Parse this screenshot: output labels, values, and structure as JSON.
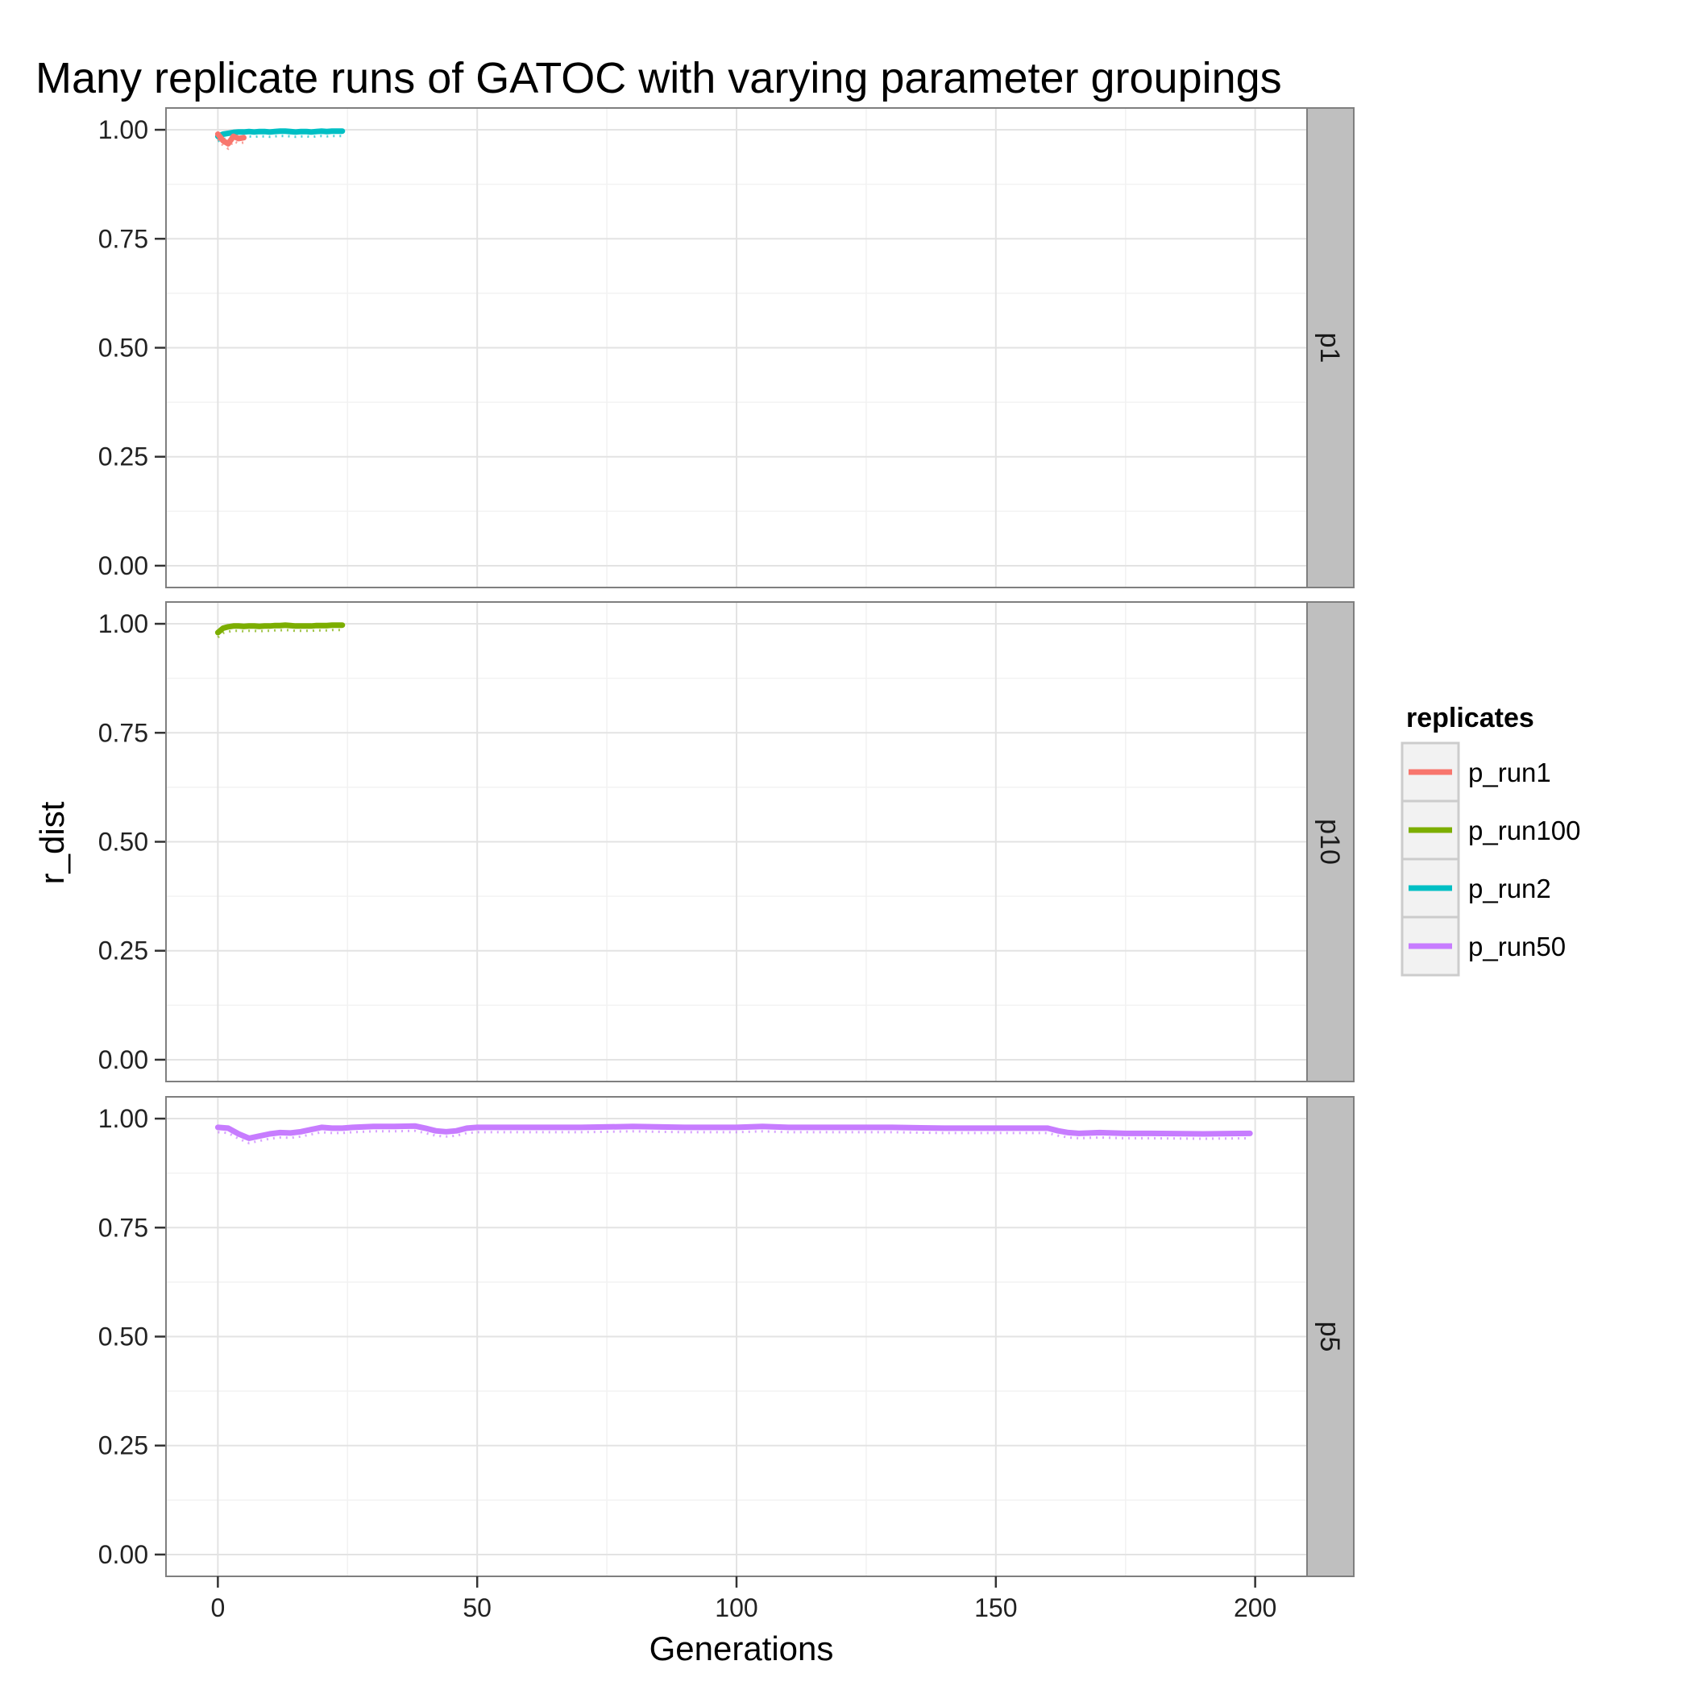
{
  "chart_data": {
    "type": "line",
    "title": "Many replicate runs of GATOC with varying parameter groupings",
    "xlabel": "Generations",
    "ylabel": "r_dist",
    "xlim": [
      -10,
      210
    ],
    "ylim": [
      -0.05,
      1.05
    ],
    "x_ticks": [
      0,
      50,
      100,
      150,
      200
    ],
    "y_ticks": [
      0.0,
      0.25,
      0.5,
      0.75,
      1.0
    ],
    "y_tick_labels": [
      "0.00",
      "0.25",
      "0.50",
      "0.75",
      "1.00"
    ],
    "grid": true,
    "facet": "rows",
    "legend": {
      "title": "replicates",
      "position": "right",
      "entries": [
        {
          "name": "p_run1",
          "color": "#F8766D"
        },
        {
          "name": "p_run100",
          "color": "#7CAE00"
        },
        {
          "name": "p_run2",
          "color": "#00BFC4"
        },
        {
          "name": "p_run50",
          "color": "#C77CFF"
        }
      ]
    },
    "panels": [
      {
        "label": "p1",
        "series": [
          {
            "name": "p_run2",
            "color": "#00BFC4",
            "x": [
              0,
              1,
              2,
              3,
              4,
              5,
              6,
              7,
              8,
              9,
              10,
              11,
              12,
              13,
              14,
              15,
              16,
              17,
              18,
              19,
              20,
              21,
              22,
              23,
              24
            ],
            "values": [
              0.985,
              0.99,
              0.992,
              0.994,
              0.995,
              0.995,
              0.996,
              0.995,
              0.996,
              0.996,
              0.995,
              0.996,
              0.997,
              0.997,
              0.996,
              0.995,
              0.996,
              0.996,
              0.995,
              0.996,
              0.997,
              0.996,
              0.997,
              0.997,
              0.997
            ]
          },
          {
            "name": "p_run1",
            "color": "#F8766D",
            "x": [
              0,
              1,
              2,
              3,
              4,
              5
            ],
            "values": [
              0.99,
              0.975,
              0.968,
              0.985,
              0.98,
              0.982
            ]
          }
        ]
      },
      {
        "label": "p10",
        "series": [
          {
            "name": "p_run100",
            "color": "#7CAE00",
            "x": [
              0,
              1,
              2,
              3,
              4,
              5,
              6,
              7,
              8,
              9,
              10,
              11,
              12,
              13,
              14,
              15,
              16,
              17,
              18,
              19,
              20,
              21,
              22,
              23,
              24
            ],
            "values": [
              0.98,
              0.99,
              0.993,
              0.995,
              0.995,
              0.994,
              0.995,
              0.995,
              0.994,
              0.995,
              0.995,
              0.996,
              0.996,
              0.997,
              0.996,
              0.995,
              0.995,
              0.995,
              0.995,
              0.996,
              0.996,
              0.996,
              0.997,
              0.997,
              0.997
            ]
          }
        ]
      },
      {
        "label": "p5",
        "series": [
          {
            "name": "p_run50",
            "color": "#C77CFF",
            "x": [
              0,
              2,
              4,
              6,
              8,
              10,
              12,
              14,
              16,
              18,
              20,
              22,
              24,
              26,
              30,
              34,
              38,
              40,
              42,
              44,
              46,
              48,
              50,
              55,
              60,
              70,
              80,
              90,
              100,
              105,
              110,
              120,
              130,
              140,
              150,
              155,
              160,
              162,
              164,
              166,
              170,
              175,
              180,
              190,
              199
            ],
            "values": [
              0.98,
              0.978,
              0.965,
              0.955,
              0.96,
              0.965,
              0.968,
              0.967,
              0.97,
              0.975,
              0.98,
              0.978,
              0.978,
              0.98,
              0.982,
              0.982,
              0.983,
              0.978,
              0.972,
              0.97,
              0.972,
              0.978,
              0.98,
              0.98,
              0.98,
              0.98,
              0.982,
              0.98,
              0.98,
              0.982,
              0.98,
              0.98,
              0.98,
              0.978,
              0.978,
              0.978,
              0.978,
              0.972,
              0.968,
              0.966,
              0.968,
              0.966,
              0.966,
              0.965,
              0.966
            ]
          }
        ]
      }
    ]
  }
}
